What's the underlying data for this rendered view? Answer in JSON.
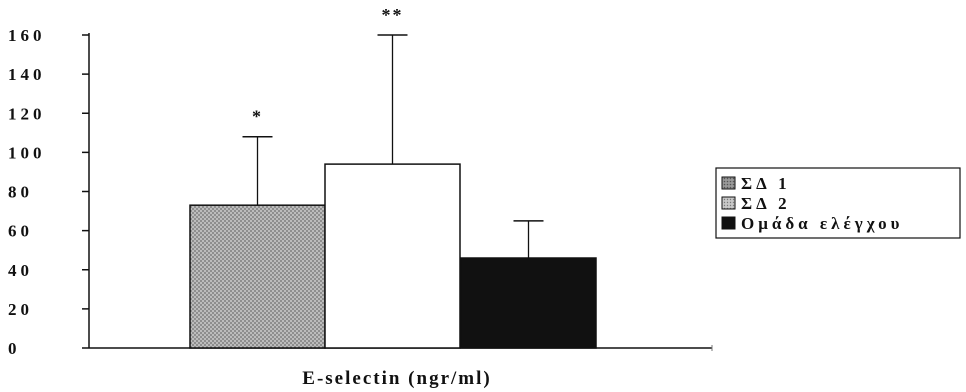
{
  "chart_data": {
    "type": "bar",
    "xlabel": "E-selectin (ngr/ml)",
    "ylim": [
      0,
      160
    ],
    "yticks": [
      0,
      20,
      40,
      60,
      80,
      100,
      120,
      140,
      160
    ],
    "ytick_labels": [
      "0",
      "20",
      "40",
      "60",
      "80",
      "100",
      "120",
      "140",
      "160"
    ],
    "grid": false,
    "legend_position": "right",
    "series": [
      {
        "name": "ΣΔ 1",
        "value": 73,
        "error_upper": 108,
        "significance": "*",
        "fill": "#a8a8a8",
        "pattern": "dotted"
      },
      {
        "name": "ΣΔ 2",
        "value": 94,
        "error_upper": 160,
        "significance": "**",
        "fill": "#ffffff",
        "pattern": "none"
      },
      {
        "name": "Ομάδα ελέγχου",
        "value": 46,
        "error_upper": 65,
        "significance": "",
        "fill": "#111111",
        "pattern": "none"
      }
    ],
    "legend": [
      {
        "label": "ΣΔ 1",
        "swatch": "#9a9a9a"
      },
      {
        "label": "ΣΔ 2",
        "swatch": "#bdbdbd"
      },
      {
        "label": "Ομάδα ελέγχου",
        "swatch": "#111111"
      }
    ]
  }
}
